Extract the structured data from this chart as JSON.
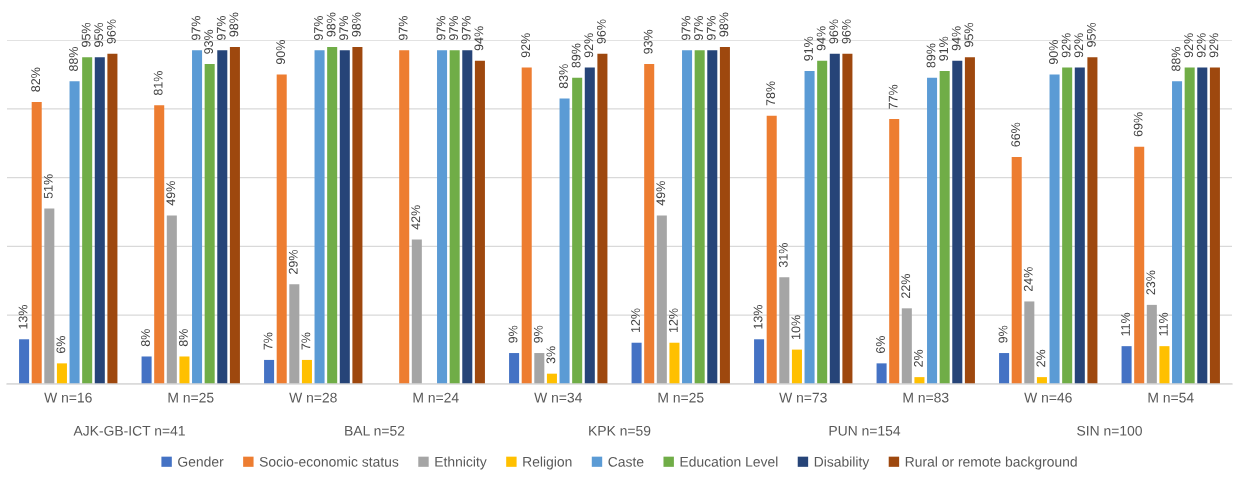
{
  "chart_data": {
    "type": "bar",
    "categories": [
      "W n=16",
      "M n=25",
      "W n=28",
      "M n=24",
      "W n=34",
      "M n=25",
      "W n=73",
      "M n=83",
      "W n=46",
      "M n=54"
    ],
    "annotations": [
      "AJK-GB-ICT n=41",
      "BAL n=52",
      "KPK n=59",
      "PUN n=154",
      "SIN n=100"
    ],
    "series": [
      {
        "name": "Gender",
        "color": "#4472c4",
        "values": [
          13,
          8,
          7,
          null,
          9,
          12,
          13,
          6,
          9,
          11
        ],
        "value_labels": [
          "13%",
          "8%",
          "7%",
          null,
          "9%",
          "12%",
          "13%",
          "6%",
          "9%",
          "11%"
        ]
      },
      {
        "name": "Socio-economic status",
        "color": "#ed7d31",
        "values": [
          82,
          81,
          90,
          97,
          92,
          93,
          78,
          77,
          66,
          69
        ],
        "value_labels": [
          "82%",
          "81%",
          "90%",
          "97%",
          "92%",
          "93%",
          "78%",
          "77%",
          "66%",
          "69%"
        ]
      },
      {
        "name": "Ethnicity",
        "color": "#a5a5a5",
        "values": [
          51,
          49,
          29,
          42,
          9,
          49,
          31,
          22,
          24,
          23
        ],
        "value_labels": [
          "51%",
          "49%",
          "29%",
          "42%",
          "9%",
          "49%",
          "31%",
          "22%",
          "24%",
          "23%"
        ]
      },
      {
        "name": "Religion",
        "color": "#ffc000",
        "values": [
          6,
          8,
          7,
          null,
          3,
          12,
          10,
          2,
          2,
          11
        ],
        "value_labels": [
          "6%",
          "8%",
          "7%",
          null,
          "3%",
          "12%",
          "10%",
          "2%",
          "2%",
          "11%"
        ]
      },
      {
        "name": "Caste",
        "color": "#5b9bd5",
        "values": [
          88,
          97,
          97,
          97,
          83,
          97,
          91,
          89,
          90,
          88
        ],
        "value_labels": [
          "88%",
          "97%",
          "97%",
          "97%",
          "83%",
          "97%",
          "91%",
          "89%",
          "90%",
          "88%"
        ]
      },
      {
        "name": "Education Level",
        "color": "#70ad47",
        "values": [
          95,
          93,
          98,
          97,
          89,
          97,
          94,
          91,
          92,
          92
        ],
        "value_labels": [
          "95%",
          "93%",
          "98%",
          "97%",
          "89%",
          "97%",
          "94%",
          "91%",
          "92%",
          "92%"
        ]
      },
      {
        "name": "Disability",
        "color": "#264478",
        "values": [
          95,
          97,
          97,
          97,
          92,
          97,
          96,
          94,
          92,
          92
        ],
        "value_labels": [
          "95%",
          "97%",
          "97%",
          "97%",
          "92%",
          "97%",
          "96%",
          "94%",
          "92%",
          "92%"
        ]
      },
      {
        "name": "Rural or remote background",
        "color": "#9e480e",
        "values": [
          96,
          98,
          98,
          94,
          96,
          98,
          96,
          95,
          95,
          92
        ],
        "value_labels": [
          "96%",
          "98%",
          "98%",
          "94%",
          "96%",
          "98%",
          "96%",
          "95%",
          "95%",
          "92%"
        ]
      }
    ],
    "ylim": [
      0,
      100
    ],
    "yticks": [
      {
        "value": 0,
        "label": null
      },
      {
        "value": 20,
        "label": null
      },
      {
        "value": 40,
        "label": null
      },
      {
        "value": 60,
        "label": null
      },
      {
        "value": 80,
        "label": null
      },
      {
        "value": 100,
        "label": null
      }
    ],
    "tick_labels": "x",
    "grid": "y",
    "legend": "bottom"
  }
}
